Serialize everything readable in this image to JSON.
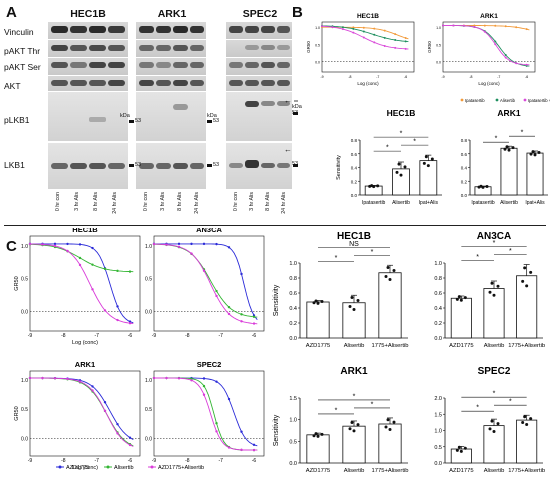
{
  "panels": {
    "a": "A",
    "b": "B",
    "c": "C"
  },
  "blots": {
    "cell_lines": [
      "HEC1B",
      "ARK1",
      "SPEC2"
    ],
    "rows": [
      "Vinculin",
      "pAKT Thr",
      "pAKT Ser",
      "AKT",
      "pLKB1",
      "LKB1"
    ],
    "lanes": [
      "0 hr con",
      "3 hr Alis",
      "8 hr Alis",
      "24 hr Alis"
    ],
    "kda": "kDa",
    "marker": "53"
  },
  "b_curves": {
    "titles": [
      "HEC1B",
      "ARK1"
    ],
    "ylabel": "GR50",
    "xlabel": "Log (conc)",
    "legend": [
      "Ipatasertib",
      "Alisertib",
      "Ipatasertib + Alisertib"
    ],
    "x_ticks": [
      "-9",
      "-8",
      "-7",
      "-6"
    ],
    "y_ticks": [
      "1.0",
      "0.5",
      "0.0"
    ]
  },
  "b_bars": [
    {
      "title": "HEC1B",
      "ylabel": "Sensitivity",
      "categories": [
        "Ipatasertib",
        "Alisertib",
        "Ipat+Alis"
      ],
      "values": [
        0.13,
        0.38,
        0.5
      ],
      "errors": [
        0.01,
        0.1,
        0.08
      ],
      "y_ticks": [
        "0.0",
        "0.2",
        "0.4",
        "0.6",
        "0.8"
      ],
      "ylim": [
        0,
        0.8
      ],
      "sig": [
        "*",
        "*",
        "*"
      ]
    },
    {
      "title": "ARK1",
      "ylabel": "",
      "categories": [
        "Ipatasertib",
        "Alisertib",
        "Ipat+Alis"
      ],
      "values": [
        0.12,
        0.68,
        0.61
      ],
      "errors": [
        0.01,
        0.03,
        0.03
      ],
      "y_ticks": [
        "0.0",
        "0.2",
        "0.4",
        "0.6",
        "0.8"
      ],
      "ylim": [
        0,
        0.8
      ],
      "sig": [
        "*",
        "*"
      ]
    }
  ],
  "c_curves": {
    "titles": [
      "HEC1B",
      "AN3CA",
      "ARK1",
      "SPEC2"
    ],
    "ylabel": "GR50",
    "xlabel": "Log (conc)",
    "y_ticks": [
      "1.0",
      "0.5",
      "0.0"
    ],
    "x_ticks": [
      "-9",
      "-8",
      "-7",
      "-6"
    ],
    "legend": [
      "AZD1775",
      "Alisertib",
      "AZD1775+Alisertib"
    ],
    "colors": {
      "azd": "#2b2bd8",
      "alis": "#33b533",
      "combo": "#d93cd9"
    }
  },
  "chart_data": [
    {
      "type": "bar",
      "title": "HEC1B",
      "ylabel": "Sensitivity",
      "categories": [
        "AZD1775",
        "Alisertib",
        "1775+Alisertib"
      ],
      "values": [
        0.48,
        0.47,
        0.87
      ],
      "errors": [
        0.02,
        0.1,
        0.1
      ],
      "ylim": [
        0,
        1.0
      ],
      "y_ticks": [
        "0.0",
        "0.2",
        "0.4",
        "0.6",
        "0.8",
        "1.0"
      ],
      "sig": [
        "*",
        "*",
        "NS"
      ]
    },
    {
      "type": "bar",
      "title": "AN3CA",
      "ylabel": "",
      "categories": [
        "AZD1775",
        "Alisertib",
        "1775+Alisertib"
      ],
      "values": [
        0.53,
        0.66,
        0.83
      ],
      "errors": [
        0.03,
        0.1,
        0.15
      ],
      "ylim": [
        0,
        1.0
      ],
      "y_ticks": [
        "0.0",
        "0.2",
        "0.4",
        "0.6",
        "0.8",
        "1.0"
      ],
      "sig": [
        "*",
        "*",
        "*"
      ]
    },
    {
      "type": "bar",
      "title": "ARK1",
      "ylabel": "Sensitivity",
      "categories": [
        "AZD1775",
        "Alisertib",
        "1775+Alisertib"
      ],
      "values": [
        0.65,
        0.85,
        0.9
      ],
      "errors": [
        0.04,
        0.12,
        0.14
      ],
      "ylim": [
        0,
        1.5
      ],
      "y_ticks": [
        "0.0",
        "0.5",
        "1.0",
        "1.5"
      ],
      "sig": [
        "*",
        "*",
        "*"
      ]
    },
    {
      "type": "bar",
      "title": "SPEC2",
      "ylabel": "",
      "categories": [
        "AZD1775",
        "Alisertib",
        "1775+Alisertib"
      ],
      "values": [
        0.43,
        1.15,
        1.32
      ],
      "errors": [
        0.08,
        0.2,
        0.15
      ],
      "ylim": [
        0,
        2.0
      ],
      "y_ticks": [
        "0.0",
        "0.5",
        "1.0",
        "1.5",
        "2.0"
      ],
      "sig": [
        "*",
        "*",
        "*"
      ]
    }
  ]
}
